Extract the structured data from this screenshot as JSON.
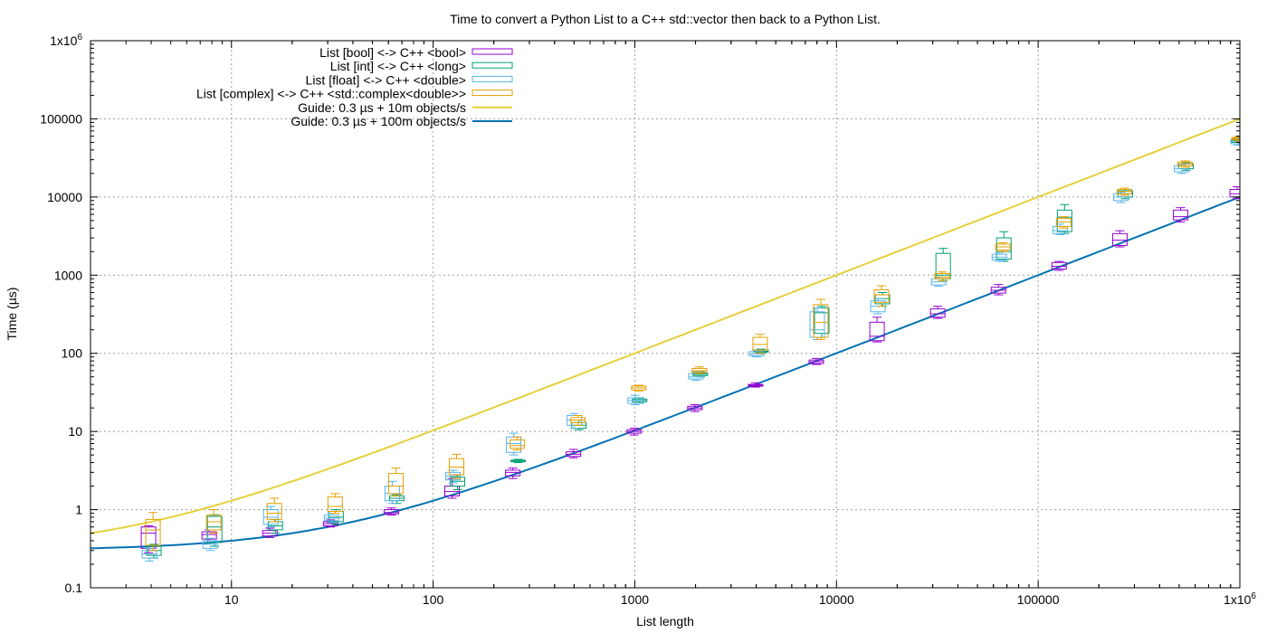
{
  "chart_data": {
    "type": "boxplot",
    "title": "Time to convert a Python List to a C++ std::vector then back to a Python List.",
    "xlabel": "List length",
    "ylabel": "Time (µs)",
    "x_scale": "log",
    "y_scale": "log",
    "xlim": [
      2,
      1000000
    ],
    "ylim": [
      0.1,
      1000000
    ],
    "grid": true,
    "legend_position": "top-left",
    "x_ticks": [
      {
        "value": 10,
        "label": "10",
        "sup": ""
      },
      {
        "value": 100,
        "label": "100",
        "sup": ""
      },
      {
        "value": 1000,
        "label": "1000",
        "sup": ""
      },
      {
        "value": 10000,
        "label": "10000",
        "sup": ""
      },
      {
        "value": 100000,
        "label": "100000",
        "sup": ""
      },
      {
        "value": 1000000,
        "label": "1x10",
        "sup": "6"
      }
    ],
    "y_ticks": [
      {
        "value": 0.1,
        "label": "0.1",
        "sup": ""
      },
      {
        "value": 1,
        "label": "1",
        "sup": ""
      },
      {
        "value": 10,
        "label": "10",
        "sup": ""
      },
      {
        "value": 100,
        "label": "100",
        "sup": ""
      },
      {
        "value": 1000,
        "label": "1000",
        "sup": ""
      },
      {
        "value": 10000,
        "label": "10000",
        "sup": ""
      },
      {
        "value": 100000,
        "label": "100000",
        "sup": ""
      },
      {
        "value": 1000000,
        "label": "1x10",
        "sup": "6"
      }
    ],
    "box_series": [
      {
        "name": "List [bool] <-> C++ <bool>",
        "color": "#9400d3",
        "boxes": [
          {
            "x": 4,
            "min": 0.28,
            "q1": 0.32,
            "median": 0.5,
            "q3": 0.6,
            "max": 0.62
          },
          {
            "x": 8,
            "min": 0.4,
            "q1": 0.42,
            "median": 0.48,
            "q3": 0.52,
            "max": 0.55
          },
          {
            "x": 16,
            "min": 0.44,
            "q1": 0.46,
            "median": 0.5,
            "q3": 0.54,
            "max": 0.58
          },
          {
            "x": 32,
            "min": 0.6,
            "q1": 0.62,
            "median": 0.66,
            "q3": 0.7,
            "max": 0.74
          },
          {
            "x": 64,
            "min": 0.85,
            "q1": 0.88,
            "median": 0.92,
            "q3": 1.0,
            "max": 1.05
          },
          {
            "x": 128,
            "min": 1.4,
            "q1": 1.5,
            "median": 1.7,
            "q3": 2.0,
            "max": 2.5
          },
          {
            "x": 256,
            "min": 2.5,
            "q1": 2.7,
            "median": 3.0,
            "q3": 3.2,
            "max": 3.4
          },
          {
            "x": 512,
            "min": 4.6,
            "q1": 4.8,
            "median": 5.1,
            "q3": 5.5,
            "max": 5.9
          },
          {
            "x": 1024,
            "min": 9.0,
            "q1": 9.5,
            "median": 10,
            "q3": 10.5,
            "max": 11
          },
          {
            "x": 2048,
            "min": 18,
            "q1": 19,
            "median": 20,
            "q3": 21,
            "max": 22
          },
          {
            "x": 4096,
            "min": 37,
            "q1": 38,
            "median": 39,
            "q3": 40,
            "max": 42
          },
          {
            "x": 8192,
            "min": 72,
            "q1": 74,
            "median": 78,
            "q3": 82,
            "max": 86
          },
          {
            "x": 16384,
            "min": 140,
            "q1": 145,
            "median": 165,
            "q3": 250,
            "max": 290
          },
          {
            "x": 32768,
            "min": 280,
            "q1": 290,
            "median": 320,
            "q3": 370,
            "max": 400
          },
          {
            "x": 65536,
            "min": 560,
            "q1": 590,
            "median": 640,
            "q3": 700,
            "max": 760
          },
          {
            "x": 131072,
            "min": 1150,
            "q1": 1200,
            "median": 1300,
            "q3": 1450,
            "max": 1500
          },
          {
            "x": 262144,
            "min": 2300,
            "q1": 2400,
            "median": 2800,
            "q3": 3400,
            "max": 3700
          },
          {
            "x": 524288,
            "min": 4800,
            "q1": 5100,
            "median": 5600,
            "q3": 6800,
            "max": 7300
          },
          {
            "x": 1000000,
            "min": 9500,
            "q1": 10000,
            "median": 11000,
            "q3": 12500,
            "max": 13500
          }
        ]
      },
      {
        "name": "List [int] <-> C++ <long>",
        "color": "#009e73",
        "boxes": [
          {
            "x": 4,
            "min": 0.24,
            "q1": 0.26,
            "median": 0.3,
            "q3": 0.34,
            "max": 0.36
          },
          {
            "x": 8,
            "min": 0.34,
            "q1": 0.38,
            "median": 0.6,
            "q3": 0.82,
            "max": 0.86
          },
          {
            "x": 16,
            "min": 0.5,
            "q1": 0.55,
            "median": 0.62,
            "q3": 0.7,
            "max": 0.75
          },
          {
            "x": 32,
            "min": 0.65,
            "q1": 0.7,
            "median": 0.8,
            "q3": 0.95,
            "max": 1.0
          },
          {
            "x": 64,
            "min": 1.2,
            "q1": 1.3,
            "median": 1.4,
            "q3": 1.5,
            "max": 1.55
          },
          {
            "x": 128,
            "min": 1.8,
            "q1": 2.0,
            "median": 2.3,
            "q3": 2.6,
            "max": 2.8
          },
          {
            "x": 256,
            "min": 4.0,
            "q1": 4.1,
            "median": 4.2,
            "q3": 4.3,
            "max": 4.4
          },
          {
            "x": 512,
            "min": 10.5,
            "q1": 11,
            "median": 12,
            "q3": 13,
            "max": 14
          },
          {
            "x": 1024,
            "min": 23,
            "q1": 24,
            "median": 25,
            "q3": 26,
            "max": 27
          },
          {
            "x": 2048,
            "min": 50,
            "q1": 52,
            "median": 54,
            "q3": 56,
            "max": 58
          },
          {
            "x": 4096,
            "min": 100,
            "q1": 103,
            "median": 106,
            "q3": 110,
            "max": 113
          },
          {
            "x": 8192,
            "min": 160,
            "q1": 180,
            "median": 330,
            "q3": 380,
            "max": 400
          },
          {
            "x": 16384,
            "min": 400,
            "q1": 430,
            "median": 500,
            "q3": 560,
            "max": 600
          },
          {
            "x": 32768,
            "min": 850,
            "q1": 900,
            "median": 1000,
            "q3": 1900,
            "max": 2200
          },
          {
            "x": 65536,
            "min": 1500,
            "q1": 1600,
            "median": 2000,
            "q3": 3000,
            "max": 3600
          },
          {
            "x": 131072,
            "min": 3400,
            "q1": 3600,
            "median": 5500,
            "q3": 6800,
            "max": 8000
          },
          {
            "x": 262144,
            "min": 9500,
            "q1": 10000,
            "median": 11000,
            "q3": 12000,
            "max": 12500
          },
          {
            "x": 524288,
            "min": 22000,
            "q1": 23000,
            "median": 25000,
            "q3": 26500,
            "max": 27500
          },
          {
            "x": 1000000,
            "min": 48000,
            "q1": 50000,
            "median": 53000,
            "q3": 55000,
            "max": 57000
          }
        ]
      },
      {
        "name": "List [float] <-> C++ <double>",
        "color": "#56b4e9",
        "boxes": [
          {
            "x": 4,
            "min": 0.22,
            "q1": 0.24,
            "median": 0.27,
            "q3": 0.3,
            "max": 0.32
          },
          {
            "x": 8,
            "min": 0.3,
            "q1": 0.32,
            "median": 0.36,
            "q3": 0.4,
            "max": 0.43
          },
          {
            "x": 16,
            "min": 0.6,
            "q1": 0.65,
            "median": 0.8,
            "q3": 1.0,
            "max": 1.1
          },
          {
            "x": 32,
            "min": 0.68,
            "q1": 0.72,
            "median": 0.78,
            "q3": 0.85,
            "max": 0.9
          },
          {
            "x": 64,
            "min": 1.2,
            "q1": 1.3,
            "median": 1.6,
            "q3": 2.0,
            "max": 2.3
          },
          {
            "x": 128,
            "min": 2.2,
            "q1": 2.4,
            "median": 2.7,
            "q3": 3.0,
            "max": 3.2
          },
          {
            "x": 256,
            "min": 5.0,
            "q1": 5.4,
            "median": 7.0,
            "q3": 8.5,
            "max": 9.5
          },
          {
            "x": 512,
            "min": 11,
            "q1": 12,
            "median": 14,
            "q3": 16,
            "max": 17
          },
          {
            "x": 1024,
            "min": 22,
            "q1": 23,
            "median": 25,
            "q3": 27,
            "max": 29
          },
          {
            "x": 2048,
            "min": 45,
            "q1": 47,
            "median": 50,
            "q3": 55,
            "max": 58
          },
          {
            "x": 4096,
            "min": 90,
            "q1": 93,
            "median": 98,
            "q3": 105,
            "max": 110
          },
          {
            "x": 8192,
            "min": 150,
            "q1": 160,
            "median": 200,
            "q3": 340,
            "max": 380
          },
          {
            "x": 16384,
            "min": 320,
            "q1": 340,
            "median": 400,
            "q3": 470,
            "max": 500
          },
          {
            "x": 32768,
            "min": 720,
            "q1": 750,
            "median": 820,
            "q3": 900,
            "max": 950
          },
          {
            "x": 65536,
            "min": 1500,
            "q1": 1560,
            "median": 1700,
            "q3": 1850,
            "max": 1950
          },
          {
            "x": 131072,
            "min": 3300,
            "q1": 3400,
            "median": 3700,
            "q3": 4200,
            "max": 4500
          },
          {
            "x": 262144,
            "min": 8500,
            "q1": 9000,
            "median": 10000,
            "q3": 11000,
            "max": 11500
          },
          {
            "x": 524288,
            "min": 20000,
            "q1": 21000,
            "median": 23000,
            "q3": 25000,
            "max": 26000
          },
          {
            "x": 1000000,
            "min": 46000,
            "q1": 48000,
            "median": 51000,
            "q3": 54000,
            "max": 56000
          }
        ]
      },
      {
        "name": "List [complex] <-> C++ <std::complex<double>>",
        "color": "#e69f00",
        "boxes": [
          {
            "x": 4,
            "min": 0.3,
            "q1": 0.35,
            "median": 0.55,
            "q3": 0.75,
            "max": 0.92
          },
          {
            "x": 8,
            "min": 0.5,
            "q1": 0.55,
            "median": 0.7,
            "q3": 0.85,
            "max": 1.0
          },
          {
            "x": 16,
            "min": 0.7,
            "q1": 0.75,
            "median": 0.9,
            "q3": 1.2,
            "max": 1.4
          },
          {
            "x": 32,
            "min": 0.9,
            "q1": 0.95,
            "median": 1.1,
            "q3": 1.45,
            "max": 1.6
          },
          {
            "x": 64,
            "min": 1.5,
            "q1": 1.6,
            "median": 2.0,
            "q3": 2.9,
            "max": 3.4
          },
          {
            "x": 128,
            "min": 2.5,
            "q1": 2.8,
            "median": 3.5,
            "q3": 4.5,
            "max": 5.1
          },
          {
            "x": 256,
            "min": 5.8,
            "q1": 6.1,
            "median": 6.6,
            "q3": 7.8,
            "max": 8.5
          },
          {
            "x": 512,
            "min": 12,
            "q1": 13,
            "median": 14,
            "q3": 15,
            "max": 16
          },
          {
            "x": 1024,
            "min": 33,
            "q1": 34,
            "median": 36,
            "q3": 38,
            "max": 39
          },
          {
            "x": 2048,
            "min": 55,
            "q1": 57,
            "median": 60,
            "q3": 64,
            "max": 67
          },
          {
            "x": 4096,
            "min": 100,
            "q1": 110,
            "median": 130,
            "q3": 160,
            "max": 175
          },
          {
            "x": 8192,
            "min": 150,
            "q1": 160,
            "median": 250,
            "q3": 420,
            "max": 490
          },
          {
            "x": 16384,
            "min": 400,
            "q1": 450,
            "median": 560,
            "q3": 650,
            "max": 730
          },
          {
            "x": 32768,
            "min": 850,
            "q1": 900,
            "median": 950,
            "q3": 1050,
            "max": 1100
          },
          {
            "x": 65536,
            "min": 2000,
            "q1": 2100,
            "median": 2300,
            "q3": 2500,
            "max": 2600
          },
          {
            "x": 131072,
            "min": 4000,
            "q1": 4200,
            "median": 4800,
            "q3": 5300,
            "max": 5600
          },
          {
            "x": 262144,
            "min": 10500,
            "q1": 11000,
            "median": 11800,
            "q3": 12500,
            "max": 13000
          },
          {
            "x": 524288,
            "min": 24000,
            "q1": 25000,
            "median": 26500,
            "q3": 28000,
            "max": 29000
          },
          {
            "x": 1000000,
            "min": 52000,
            "q1": 54000,
            "median": 56000,
            "q3": 58000,
            "max": 60000
          }
        ]
      }
    ],
    "line_series": [
      {
        "name": "Guide: 0.3 µs + 10m objects/s",
        "color": "#e6d03a",
        "intercept_us": 0.3,
        "rate_objects_per_us": 10
      },
      {
        "name": "Guide: 0.3 µs + 100m objects/s",
        "color": "#0072b2",
        "intercept_us": 0.3,
        "rate_objects_per_us": 100
      }
    ]
  }
}
